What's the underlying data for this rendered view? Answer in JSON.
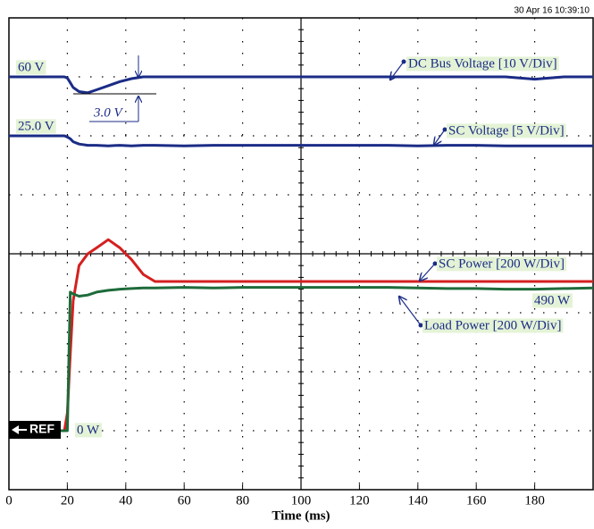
{
  "chart_data": {
    "type": "line",
    "timestamp": "30 Apr 16  10:39:10",
    "x_label": "Time (ms)",
    "x": [
      0,
      10,
      19,
      20,
      21,
      22,
      24,
      27,
      30,
      34,
      38,
      42,
      46,
      50,
      60,
      70,
      80,
      90,
      100,
      110,
      120,
      130,
      140,
      150,
      160,
      170,
      180,
      190,
      200
    ],
    "xlim": [
      0,
      200
    ],
    "xticks": [
      0,
      20,
      40,
      60,
      80,
      100,
      120,
      140,
      160,
      180
    ],
    "ylim": [
      0,
      8
    ],
    "grid": true,
    "series": [
      {
        "name": "DC Bus Voltage [10 V/Div]",
        "color": "#1b2c86",
        "values": [
          7,
          7,
          7,
          6.98,
          6.9,
          6.82,
          6.75,
          6.73,
          6.78,
          6.85,
          6.92,
          6.97,
          7,
          7,
          7,
          7,
          7,
          7,
          7,
          7,
          7,
          7,
          7,
          7,
          7,
          7,
          6.96,
          7,
          7
        ]
      },
      {
        "name": "SC Voltage [5 V/Div]",
        "color": "#1b2c86",
        "values": [
          6,
          6,
          6,
          5.98,
          5.95,
          5.9,
          5.86,
          5.84,
          5.84,
          5.83,
          5.84,
          5.83,
          5.84,
          5.84,
          5.83,
          5.84,
          5.84,
          5.84,
          5.84,
          5.84,
          5.84,
          5.84,
          5.83,
          5.84,
          5.84,
          5.83,
          5.83,
          5.83,
          5.83
        ]
      },
      {
        "name": "SC Power [200 W/Div]",
        "color": "#d42020",
        "values": [
          1,
          1,
          1,
          1.3,
          2.3,
          3.2,
          3.8,
          4.0,
          4.1,
          4.24,
          4.1,
          3.9,
          3.65,
          3.53,
          3.53,
          3.53,
          3.53,
          3.53,
          3.53,
          3.53,
          3.53,
          3.53,
          3.53,
          3.53,
          3.53,
          3.53,
          3.53,
          3.53,
          3.53
        ]
      },
      {
        "name": "Load Power [200 W/Div]",
        "color": "#1e6b3a",
        "values": [
          1,
          1,
          1,
          1,
          3.35,
          3.32,
          3.28,
          3.3,
          3.35,
          3.38,
          3.4,
          3.41,
          3.42,
          3.42,
          3.43,
          3.42,
          3.43,
          3.43,
          3.43,
          3.43,
          3.43,
          3.43,
          3.42,
          3.41,
          3.41,
          3.4,
          3.4,
          3.41,
          3.42
        ]
      }
    ],
    "annotations": [
      "60 V",
      "25.0 V",
      "3.0 V",
      "490 W",
      "0 W",
      "REF"
    ]
  }
}
